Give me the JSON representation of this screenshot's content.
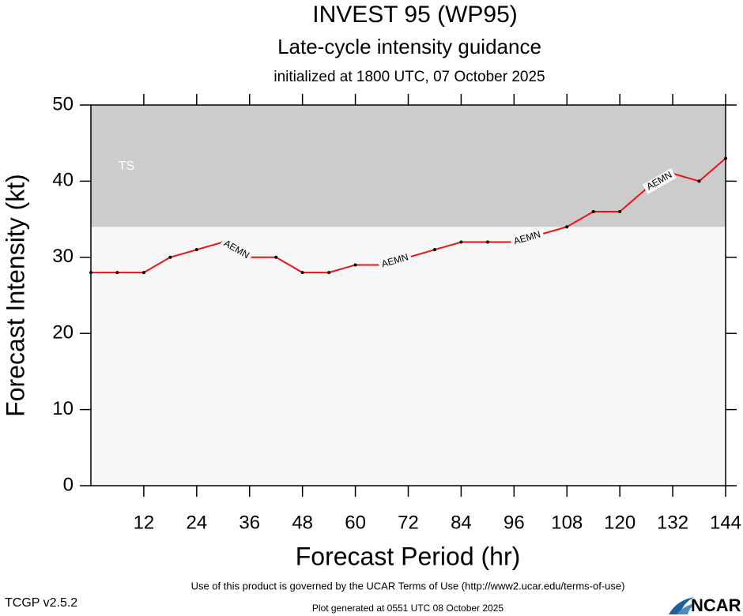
{
  "chart_data": {
    "type": "line",
    "title": "INVEST 95 (WP95)",
    "subtitle": "Late-cycle intensity guidance",
    "initialized": "initialized at 1800 UTC, 07 October 2025",
    "x_label": "Forecast Period (hr)",
    "y_label": "Forecast Intensity (kt)",
    "x": [
      0,
      6,
      12,
      18,
      24,
      30,
      36,
      42,
      48,
      54,
      60,
      66,
      72,
      78,
      84,
      90,
      96,
      102,
      108,
      114,
      120,
      126,
      132,
      138,
      144
    ],
    "series": [
      {
        "name": "AEMN",
        "color": "#ee1111",
        "values": [
          28,
          28,
          28,
          30,
          31,
          32,
          30,
          30,
          28,
          28,
          29,
          29,
          30,
          31,
          32,
          32,
          32,
          33,
          34,
          36,
          36,
          39,
          41,
          40,
          43
        ]
      }
    ],
    "bands": [
      {
        "label": "TS",
        "from": 34,
        "to": 50,
        "color": "#cccccc"
      }
    ],
    "xlim": [
      0,
      144
    ],
    "xticks": [
      12,
      24,
      36,
      48,
      60,
      72,
      84,
      96,
      108,
      120,
      132,
      144
    ],
    "ylim": [
      0,
      50
    ],
    "yticks": [
      0,
      10,
      20,
      30,
      40,
      50
    ],
    "plot_background": "#f8f8f8",
    "footer": {
      "terms": "Use of this product is governed by the UCAR Terms of Use (http://www2.ucar.edu/terms-of-use)",
      "version": "TCGP v2.5.2",
      "generated": "Plot generated at 0551 UTC   08 October 2025",
      "logo": "NCAR"
    }
  }
}
